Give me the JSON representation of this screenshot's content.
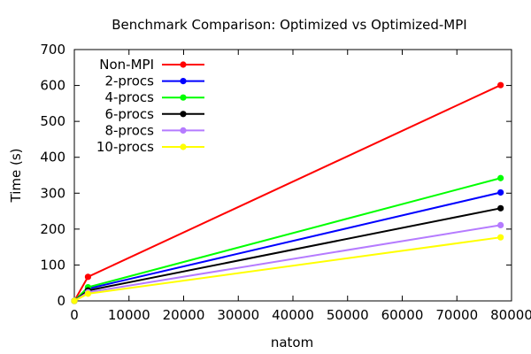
{
  "chart_data": {
    "type": "line",
    "title": "Benchmark Comparison: Optimized vs Optimized-MPI",
    "xlabel": "natom",
    "ylabel": "Time (s)",
    "xlim": [
      0,
      80000
    ],
    "ylim": [
      0,
      700
    ],
    "xticks": [
      0,
      10000,
      20000,
      30000,
      40000,
      50000,
      60000,
      70000,
      80000
    ],
    "yticks": [
      0,
      100,
      200,
      300,
      400,
      500,
      600,
      700
    ],
    "grid": false,
    "legend_position": "top-left",
    "x": [
      0,
      2500,
      78000
    ],
    "series": [
      {
        "name": "Non-MPI",
        "color": "#ff0000",
        "values": [
          0,
          67,
          601
        ]
      },
      {
        "name": "2-procs",
        "color": "#0000ff",
        "values": [
          0,
          34,
          302
        ]
      },
      {
        "name": "4-procs",
        "color": "#00ff00",
        "values": [
          0,
          38,
          342
        ]
      },
      {
        "name": "6-procs",
        "color": "#000000",
        "values": [
          0,
          29,
          258
        ]
      },
      {
        "name": "8-procs",
        "color": "#b57bff",
        "values": [
          0,
          24,
          211
        ]
      },
      {
        "name": "10-procs",
        "color": "#ffff00",
        "values": [
          0,
          20,
          177
        ]
      }
    ]
  }
}
